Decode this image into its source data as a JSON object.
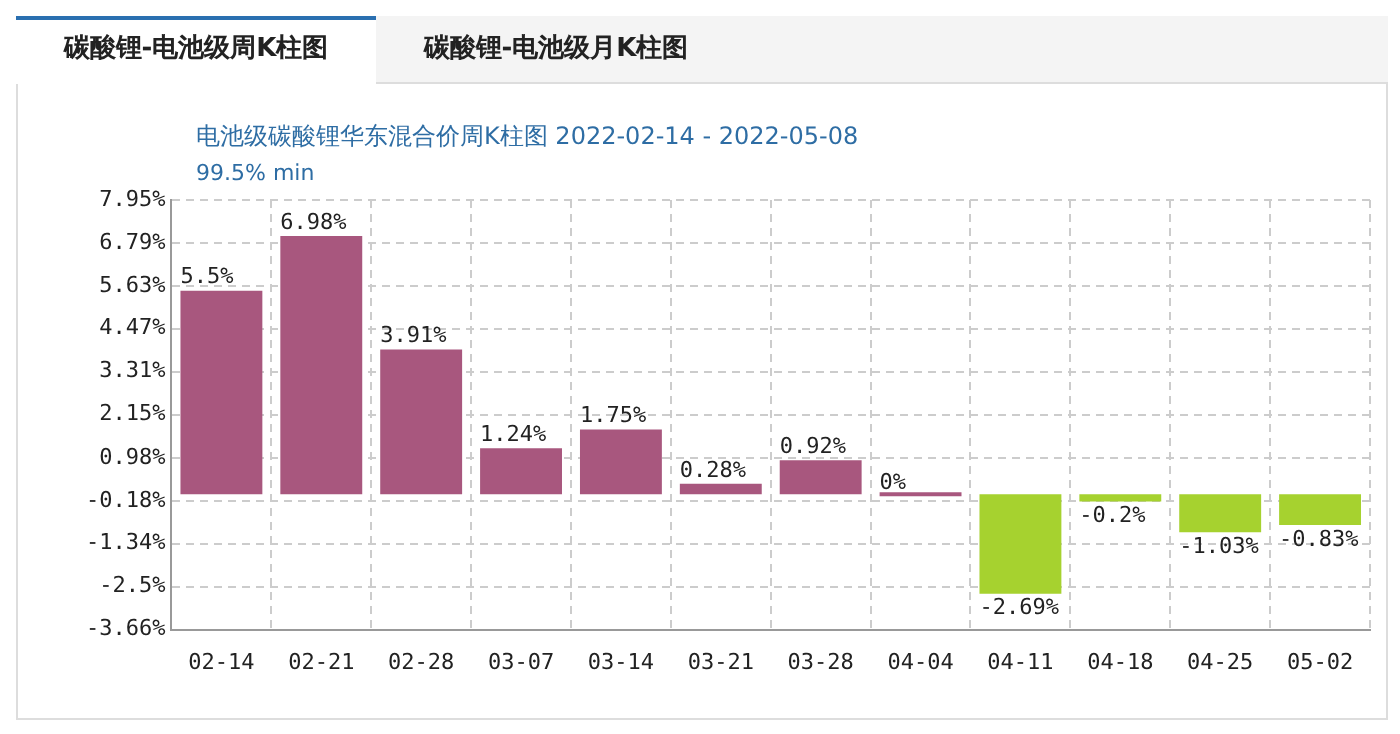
{
  "chart_data": {
    "type": "bar",
    "title": "电池级碳酸锂华东混合价周K柱图 2022-02-14 - 2022-05-08",
    "subtitle": "99.5% min",
    "annotations": [
      "碳酸锂-电池级周K柱图",
      "碳酸锂-电池级月K柱图"
    ],
    "categories": [
      "02-14",
      "02-21",
      "02-28",
      "03-07",
      "03-14",
      "03-21",
      "03-28",
      "04-04",
      "04-11",
      "04-18",
      "04-25",
      "05-02"
    ],
    "values": [
      5.5,
      6.98,
      3.91,
      1.24,
      1.75,
      0.28,
      0.92,
      0,
      -2.69,
      -0.2,
      -1.03,
      -0.83
    ],
    "colors": [
      "#a8577e",
      "#a8577e",
      "#a8577e",
      "#a8577e",
      "#a8577e",
      "#a8577e",
      "#a8577e",
      "#a8577e",
      "#a6d22f",
      "#a6d22f",
      "#a6d22f",
      "#a6d22f"
    ],
    "value_labels": [
      "5.5%",
      "6.98%",
      "3.91%",
      "1.24%",
      "1.75%",
      "0.28%",
      "0.92%",
      "0%",
      "-2.69%",
      "-0.2%",
      "-1.03%",
      "-0.83%"
    ],
    "ylim": [
      -3.66,
      7.95
    ],
    "yticks": [
      {
        "value": -3.66,
        "label": "-3.66%"
      },
      {
        "value": -2.5,
        "label": "-2.5%"
      },
      {
        "value": -1.34,
        "label": "-1.34%"
      },
      {
        "value": -0.18,
        "label": "-0.18%"
      },
      {
        "value": 0.98,
        "label": "0.98%"
      },
      {
        "value": 2.15,
        "label": "2.15%"
      },
      {
        "value": 3.31,
        "label": "3.31%"
      },
      {
        "value": 4.47,
        "label": "4.47%"
      },
      {
        "value": 5.63,
        "label": "5.63%"
      },
      {
        "value": 6.79,
        "label": "6.79%"
      },
      {
        "value": 7.95,
        "label": "7.95%"
      }
    ],
    "grid": true,
    "legend": false
  }
}
